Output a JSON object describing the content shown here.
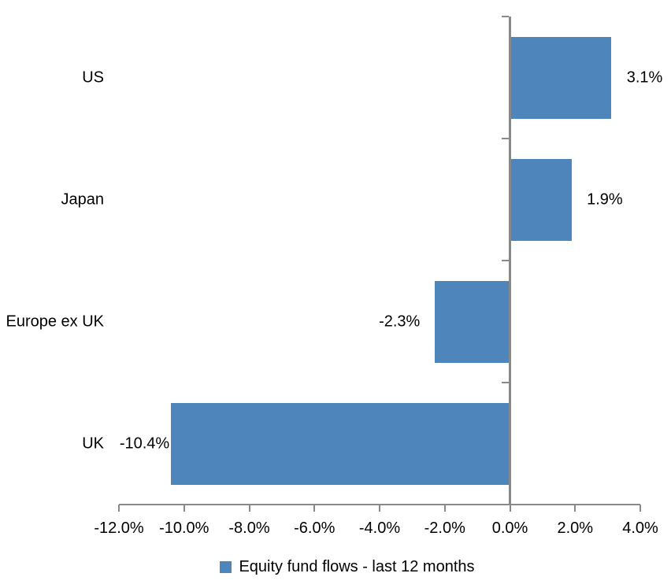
{
  "chart_data": {
    "type": "bar",
    "orientation": "horizontal",
    "title": "",
    "categories": [
      "US",
      "Japan",
      "Europe ex UK",
      "UK"
    ],
    "series": [
      {
        "name": "Equity fund flows - last 12 months",
        "values": [
          3.1,
          1.9,
          -2.3,
          -10.4
        ],
        "data_labels": [
          "3.1%",
          "1.9%",
          "-2.3%",
          "-10.4%"
        ],
        "color": "#4E86BC"
      }
    ],
    "xlabel": "",
    "ylabel": "",
    "xlim": [
      -12,
      4
    ],
    "xticks": [
      -12,
      -10,
      -8,
      -6,
      -4,
      -2,
      0,
      2,
      4
    ],
    "xtick_labels": [
      "-12.0%",
      "-10.0%",
      "-8.0%",
      "-6.0%",
      "-4.0%",
      "-2.0%",
      "0.0%",
      "2.0%",
      "4.0%"
    ],
    "grid": false,
    "legend_position": "bottom",
    "axis_color": "#898989",
    "text_color": "#000000",
    "background_color": "#FFFFFF"
  },
  "legend": {
    "items": [
      {
        "label": "Equity fund flows - last 12 months",
        "swatch_color": "#4E86BC"
      }
    ]
  }
}
